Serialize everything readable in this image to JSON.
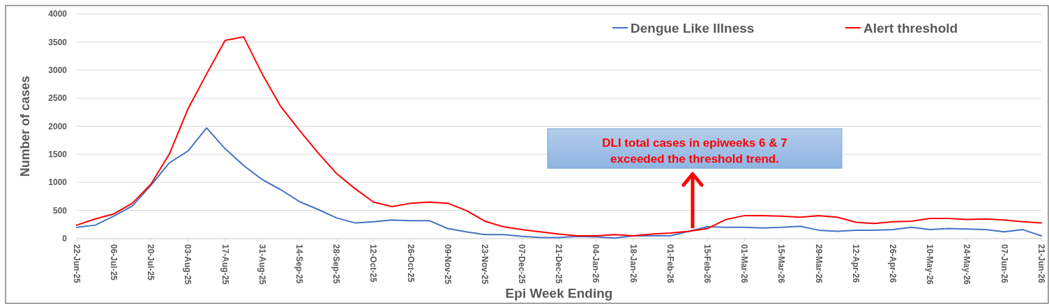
{
  "chart_data": {
    "type": "line",
    "xlabel": "Epi Week Ending",
    "ylabel": "Number of cases",
    "categories": [
      "22-Jun-25",
      null,
      "06-Jul-25",
      null,
      "20-Jul-25",
      null,
      "03-Aug-25",
      null,
      "17-Aug-25",
      null,
      "31-Aug-25",
      null,
      "14-Sep-25",
      null,
      "28-Sep-25",
      null,
      "12-Oct-25",
      null,
      "26-Oct-25",
      null,
      "09-Nov-25",
      null,
      "23-Nov-25",
      null,
      "07-Dec-25",
      null,
      "21-Dec-25",
      null,
      "04-Jan-26",
      null,
      "18-Jan-26",
      null,
      "01-Feb-26",
      null,
      "15-Feb-26",
      null,
      "01-Mar-26",
      null,
      "15-Mar-26",
      null,
      "29-Mar-26",
      null,
      "12-Apr-26",
      null,
      "26-Apr-26",
      null,
      "10-May-26",
      null,
      "24-May-26",
      null,
      "07-Jun-26",
      null,
      "21-Jun-26"
    ],
    "series": [
      {
        "name": "Dengue Like Illness",
        "color": "#4472c4",
        "values": [
          200,
          240,
          400,
          580,
          950,
          1350,
          1560,
          1970,
          1600,
          1300,
          1050,
          870,
          660,
          520,
          370,
          280,
          300,
          330,
          320,
          320,
          180,
          120,
          70,
          70,
          40,
          20,
          20,
          40,
          30,
          10,
          50,
          50,
          50,
          130,
          210,
          200,
          200,
          190,
          200,
          220,
          150,
          130,
          150,
          150,
          160,
          200,
          160,
          180,
          170,
          160,
          120,
          160,
          50
        ]
      },
      {
        "name": "Alert threshold",
        "color": "#ff0000",
        "values": [
          240,
          350,
          440,
          630,
          970,
          1510,
          2310,
          2930,
          3530,
          3590,
          2930,
          2350,
          1930,
          1530,
          1160,
          890,
          650,
          570,
          630,
          650,
          630,
          500,
          310,
          210,
          160,
          120,
          80,
          50,
          50,
          70,
          50,
          80,
          100,
          130,
          180,
          340,
          410,
          410,
          400,
          380,
          410,
          380,
          290,
          270,
          300,
          310,
          360,
          360,
          340,
          350,
          330,
          300,
          280
        ]
      }
    ],
    "ylim": [
      0,
      4000
    ],
    "yticks": [
      0,
      500,
      1000,
      1500,
      2000,
      2500,
      3000,
      3500,
      4000
    ],
    "grid": "y",
    "legend": "top right",
    "annotations": [
      {
        "text": "DLI total cases in epiweeks 6 & 7\nexceeded the threshold trend.",
        "y": 160
      }
    ]
  }
}
